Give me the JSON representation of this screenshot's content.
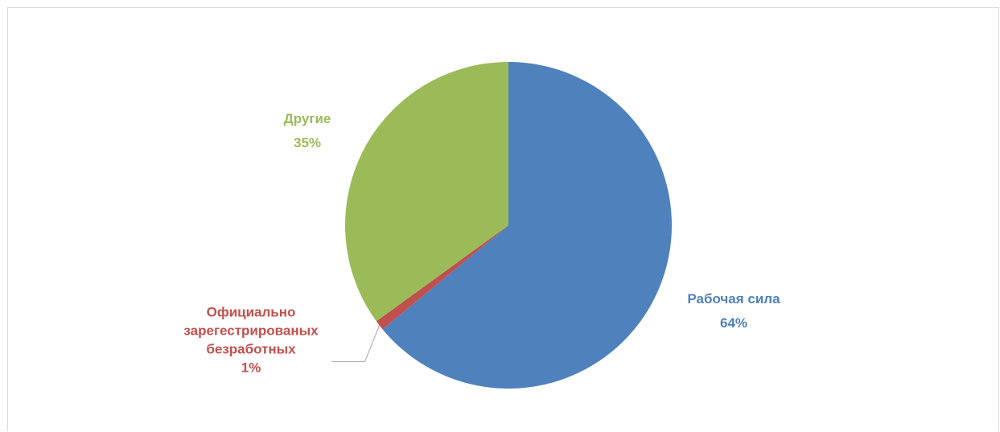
{
  "chart_data": {
    "type": "pie",
    "title": "",
    "series": [
      {
        "values": [
          {
            "category": "Рабочая сила",
            "value": 64,
            "label": "64%",
            "color": "#4f81bd"
          },
          {
            "category": "Официально зарегестрированых безработных",
            "label_lines": [
              "Официально",
              "зарегестрированых",
              "безработных"
            ],
            "value": 1,
            "label": "1%",
            "color": "#c0504d"
          },
          {
            "category": "Другие",
            "value": 35,
            "label": "35%",
            "color": "#9bbb59"
          }
        ]
      }
    ],
    "legend": "none",
    "data_labels": "category and percentage, outside end"
  }
}
